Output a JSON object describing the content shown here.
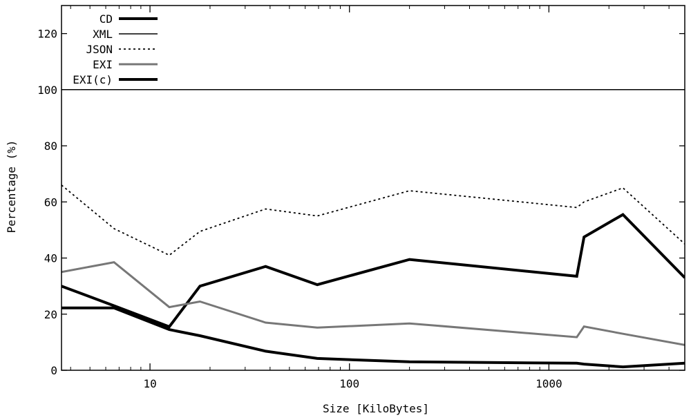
{
  "chart_data": {
    "type": "line",
    "title": "",
    "xlabel": "Size [KiloBytes]",
    "ylabel": "Percentage (%)",
    "xscale": "log",
    "xlim": [
      3.6,
      4800
    ],
    "ylim": [
      0,
      130
    ],
    "xticks": [
      {
        "value": 10,
        "label": "10"
      },
      {
        "value": 100,
        "label": "100"
      },
      {
        "value": 1000,
        "label": "1000"
      }
    ],
    "yticks": [
      {
        "value": 0,
        "label": "0"
      },
      {
        "value": 20,
        "label": "20"
      },
      {
        "value": 40,
        "label": "40"
      },
      {
        "value": 60,
        "label": "60"
      },
      {
        "value": 80,
        "label": "80"
      },
      {
        "value": 100,
        "label": "100"
      },
      {
        "value": 120,
        "label": "120"
      }
    ],
    "grid": false,
    "legend_position": "top-left",
    "series": [
      {
        "name": "CD",
        "color": "#000000",
        "style": "solid-thick",
        "x": [
          3.6,
          6.6,
          12.5,
          17.8,
          38,
          69,
          200,
          1380,
          1500,
          2350,
          4800
        ],
        "y": [
          30,
          23,
          15.5,
          30,
          37,
          30.5,
          39.5,
          33.5,
          47.5,
          55.5,
          33
        ]
      },
      {
        "name": "XML",
        "color": "#000000",
        "style": "solid-thin",
        "x": [
          3.6,
          4800
        ],
        "y": [
          100,
          100
        ]
      },
      {
        "name": "JSON",
        "color": "#000000",
        "style": "dotted",
        "x": [
          3.6,
          6.6,
          12.5,
          17.8,
          38,
          69,
          200,
          1380,
          1500,
          2350,
          4800
        ],
        "y": [
          66,
          50.5,
          41,
          49.5,
          57.5,
          55,
          64,
          58,
          60,
          65,
          45
        ]
      },
      {
        "name": "EXI",
        "color": "#777777",
        "style": "solid-medium",
        "x": [
          3.6,
          6.6,
          12.5,
          17.8,
          38,
          69,
          200,
          1380,
          1500,
          2350,
          4800
        ],
        "y": [
          35,
          38.5,
          22.5,
          24.5,
          17,
          15.2,
          16.7,
          11.8,
          15.6,
          13,
          9
        ]
      },
      {
        "name": "EXI(c)",
        "color": "#000000",
        "style": "solid-thick",
        "x": [
          3.6,
          6.6,
          12.5,
          17.8,
          38,
          69,
          200,
          1380,
          1500,
          2350,
          4800
        ],
        "y": [
          22.2,
          22.2,
          14.5,
          12.3,
          6.8,
          4.2,
          3,
          2.5,
          2.2,
          1.2,
          2.5
        ]
      }
    ]
  }
}
